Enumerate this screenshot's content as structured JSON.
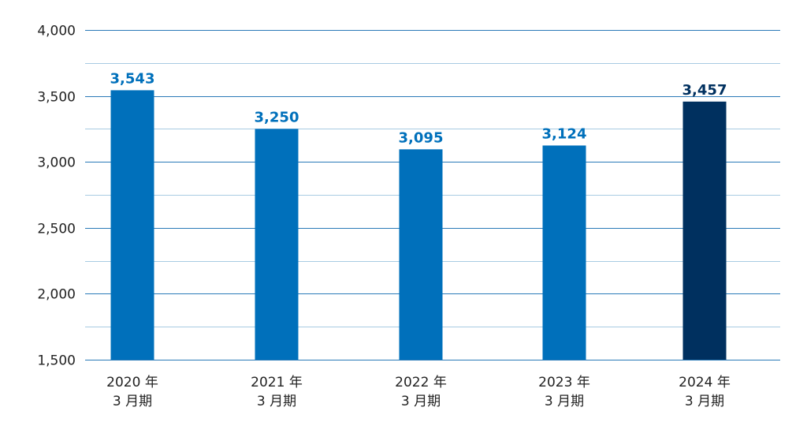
{
  "chart_data": {
    "type": "bar",
    "categories": [
      [
        "2020 年",
        "3 月期"
      ],
      [
        "2021 年",
        "3 月期"
      ],
      [
        "2022 年",
        "3 月期"
      ],
      [
        "2023 年",
        "3 月期"
      ],
      [
        "2024 年",
        "3 月期"
      ]
    ],
    "values": [
      3543,
      3250,
      3095,
      3124,
      3457
    ],
    "value_labels": [
      "3,543",
      "3,250",
      "3,095",
      "3,124",
      "3,457"
    ],
    "ylim": [
      1500,
      4000
    ],
    "yticks": [
      1500,
      2000,
      2500,
      3000,
      3500,
      4000
    ],
    "ytick_labels": [
      "1,500",
      "2,000",
      "2,500",
      "3,000",
      "3,500",
      "4,000"
    ],
    "minor_gridlines": [
      1750,
      2250,
      2750,
      3250,
      3750
    ],
    "grid": true,
    "title": "",
    "xlabel": "",
    "ylabel": "",
    "colors": {
      "bar": "#0070bb",
      "highlight_bar": "#00305f",
      "label": "#0070bb",
      "highlight_label": "#00305f",
      "major_grid": "#2a7ab8",
      "minor_grid": "#a8cbe2",
      "axis": "#2a7ab8"
    },
    "highlight_index": 4
  }
}
